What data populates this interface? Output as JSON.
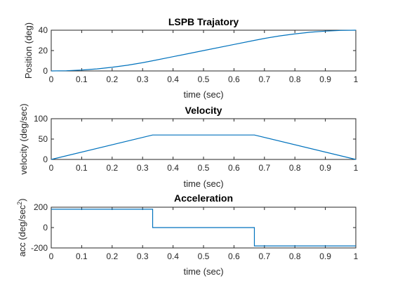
{
  "chart_data": [
    {
      "type": "line",
      "title": "LSPB Trajatory",
      "xlabel": "time (sec)",
      "ylabel": "Position (deg)",
      "xlim": [
        0,
        1
      ],
      "ylim": [
        0,
        40
      ],
      "xticks": [
        "0",
        "0.1",
        "0.2",
        "0.3",
        "0.4",
        "0.5",
        "0.6",
        "0.7",
        "0.8",
        "0.9",
        "1"
      ],
      "yticks": [
        "0",
        "20",
        "40"
      ],
      "x": [
        0,
        0.05,
        0.1,
        0.15,
        0.2,
        0.25,
        0.3,
        0.333,
        0.4,
        0.5,
        0.6,
        0.667,
        0.7,
        0.75,
        0.8,
        0.85,
        0.9,
        0.95,
        1
      ],
      "y": [
        0,
        0.2,
        0.9,
        2.0,
        3.6,
        5.6,
        8.1,
        10.0,
        14.0,
        20.0,
        26.0,
        30.0,
        31.9,
        34.4,
        36.4,
        38.0,
        39.1,
        39.8,
        40
      ],
      "color": "#0072BD"
    },
    {
      "type": "line",
      "title": "Velocity",
      "xlabel": "time (sec)",
      "ylabel": "velocity (deg/sec)",
      "xlim": [
        0,
        1
      ],
      "ylim": [
        0,
        100
      ],
      "xticks": [
        "0",
        "0.1",
        "0.2",
        "0.3",
        "0.4",
        "0.5",
        "0.6",
        "0.7",
        "0.8",
        "0.9",
        "1"
      ],
      "yticks": [
        "0",
        "50",
        "100"
      ],
      "x": [
        0,
        0.333,
        0.667,
        1
      ],
      "y": [
        0,
        60,
        60,
        0
      ],
      "color": "#0072BD"
    },
    {
      "type": "line",
      "title": "Acceleration",
      "xlabel": "time (sec)",
      "ylabel": "acc (deg/sec",
      "ylabel_sup": "2",
      "ylabel_close": ")",
      "xlim": [
        0,
        1
      ],
      "ylim": [
        -200,
        200
      ],
      "xticks": [
        "0",
        "0.1",
        "0.2",
        "0.3",
        "0.4",
        "0.5",
        "0.6",
        "0.7",
        "0.8",
        "0.9",
        "1"
      ],
      "yticks": [
        "-200",
        "0",
        "200"
      ],
      "x": [
        0,
        0.333,
        0.333,
        0.667,
        0.667,
        1
      ],
      "y": [
        180,
        180,
        0,
        0,
        -180,
        -180
      ],
      "color": "#0072BD"
    }
  ]
}
